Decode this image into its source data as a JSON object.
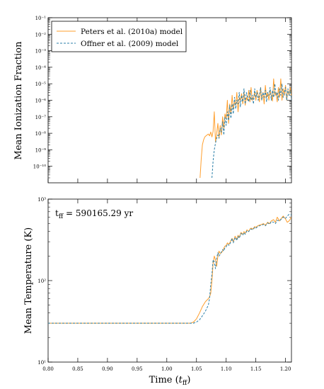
{
  "colors": {
    "peters": "#ff9f2e",
    "offner": "#2a7fa8",
    "axis": "#000000",
    "background": "#ffffff"
  },
  "chart_data": [
    {
      "type": "line",
      "ylabel": "Mean Ionization Fraction",
      "yscale": "log",
      "ylim": [
        1e-11,
        0.1
      ],
      "xlim": [
        0.8,
        1.21
      ],
      "y_ticks": [
        {
          "value": 1e-10,
          "label": "10⁻¹⁰"
        },
        {
          "value": 1e-09,
          "label": "10⁻⁹"
        },
        {
          "value": 1e-08,
          "label": "10⁻⁸"
        },
        {
          "value": 1e-07,
          "label": "10⁻⁷"
        },
        {
          "value": 1e-06,
          "label": "10⁻⁶"
        },
        {
          "value": 1e-05,
          "label": "10⁻⁵"
        },
        {
          "value": 0.0001,
          "label": "10⁻⁴"
        },
        {
          "value": 0.001,
          "label": "10⁻³"
        },
        {
          "value": 0.01,
          "label": "10⁻²"
        },
        {
          "value": 0.1,
          "label": "10⁻¹"
        }
      ],
      "legend": {
        "position": "top-left",
        "entries": [
          {
            "label": "Peters et al. (2010a) model",
            "series": 0
          },
          {
            "label": "Offner et al. (2009) model",
            "series": 1
          }
        ]
      },
      "series": [
        {
          "name": "Peters et al. (2010a) model",
          "style": "solid",
          "x": [
            1.056,
            1.058,
            1.06,
            1.062,
            1.064,
            1.066,
            1.068,
            1.07,
            1.072,
            1.074,
            1.076,
            1.078,
            1.08,
            1.082,
            1.084,
            1.086,
            1.088,
            1.09,
            1.092,
            1.094,
            1.096,
            1.098,
            1.1,
            1.102,
            1.104,
            1.106,
            1.108,
            1.11,
            1.112,
            1.114,
            1.116,
            1.118,
            1.12,
            1.122,
            1.124,
            1.126,
            1.128,
            1.13,
            1.132,
            1.134,
            1.136,
            1.138,
            1.14,
            1.142,
            1.144,
            1.146,
            1.148,
            1.15,
            1.152,
            1.154,
            1.156,
            1.158,
            1.16,
            1.162,
            1.164,
            1.166,
            1.168,
            1.17,
            1.172,
            1.174,
            1.176,
            1.178,
            1.18,
            1.182,
            1.184,
            1.186,
            1.188,
            1.19,
            1.192,
            1.194,
            1.196,
            1.198,
            1.2,
            1.202,
            1.204,
            1.206,
            1.208,
            1.21
          ],
          "y": [
            2e-11,
            3e-10,
            2e-09,
            4e-09,
            6e-09,
            7e-09,
            8e-09,
            9e-09,
            7e-09,
            1.2e-08,
            6e-09,
            1.3e-08,
            2e-07,
            3e-09,
            1e-08,
            4e-08,
            5e-09,
            3e-08,
            8e-09,
            1e-07,
            2e-08,
            1.5e-07,
            8e-08,
            1e-06,
            4e-08,
            6e-07,
            1.5e-07,
            2e-06,
            3e-07,
            8e-07,
            5e-07,
            3e-06,
            2e-07,
            1.5e-06,
            1e-06,
            2.5e-06,
            6e-07,
            3e-06,
            5e-07,
            1.5e-06,
            1e-06,
            4e-06,
            8e-07,
            6e-06,
            1e-06,
            1.5e-06,
            3e-06,
            1e-06,
            4e-06,
            2e-06,
            8e-07,
            6e-06,
            1e-06,
            3e-06,
            6e-07,
            8e-06,
            1.5e-06,
            3e-06,
            1e-06,
            4e-06,
            2e-06,
            9e-07,
            2e-05,
            2e-06,
            3e-06,
            8e-07,
            6e-06,
            1.5e-06,
            2e-05,
            1e-06,
            5e-06,
            2e-06,
            8e-06,
            1e-06,
            4e-06,
            2e-06,
            6e-06,
            1.5e-06
          ]
        },
        {
          "name": "Offner et al. (2009) model",
          "style": "dashed",
          "x": [
            1.076,
            1.078,
            1.08,
            1.082,
            1.084,
            1.086,
            1.088,
            1.09,
            1.092,
            1.094,
            1.096,
            1.098,
            1.1,
            1.102,
            1.104,
            1.106,
            1.108,
            1.11,
            1.112,
            1.114,
            1.116,
            1.118,
            1.12,
            1.122,
            1.124,
            1.126,
            1.128,
            1.13,
            1.132,
            1.134,
            1.136,
            1.138,
            1.14,
            1.142,
            1.144,
            1.146,
            1.148,
            1.15,
            1.152,
            1.154,
            1.156,
            1.158,
            1.16,
            1.162,
            1.164,
            1.166,
            1.168,
            1.17,
            1.172,
            1.174,
            1.176,
            1.178,
            1.18,
            1.182,
            1.184,
            1.186,
            1.188,
            1.19,
            1.192,
            1.194,
            1.196,
            1.198,
            1.2,
            1.202,
            1.204,
            1.206,
            1.208,
            1.21
          ],
          "y": [
            2e-11,
            2e-10,
            1e-09,
            2.5e-09,
            5e-09,
            8e-09,
            5e-09,
            2e-08,
            1.2e-08,
            5e-08,
            8e-09,
            1e-07,
            3e-08,
            2e-07,
            6e-08,
            5e-07,
            8e-08,
            6e-07,
            1.5e-07,
            1.5e-06,
            3e-07,
            1e-06,
            6e-07,
            3e-06,
            4e-07,
            2e-06,
            8e-07,
            5e-06,
            6e-07,
            3e-06,
            1.5e-06,
            8e-07,
            4e-06,
            1e-06,
            2e-06,
            6e-07,
            5e-06,
            1.5e-06,
            3e-06,
            1e-06,
            2e-06,
            6e-06,
            1e-06,
            3e-06,
            1.5e-06,
            4e-06,
            8e-07,
            3e-06,
            2e-06,
            6e-06,
            1e-06,
            4e-06,
            1.5e-06,
            1e-05,
            2e-06,
            3e-06,
            1e-06,
            5e-06,
            2e-06,
            1e-05,
            1.5e-06,
            3e-06,
            6e-06,
            1e-06,
            5e-06,
            2e-06,
            4e-06,
            1e-06
          ]
        }
      ]
    },
    {
      "type": "line",
      "xlabel": "Time (t_ff)",
      "xlabel_main": "Time (",
      "xlabel_var": "t",
      "xlabel_sub": "ff",
      "xlabel_close": ")",
      "ylabel": "Mean Temperature (K)",
      "yscale": "log",
      "ylim": [
        10,
        1000
      ],
      "xlim": [
        0.8,
        1.21
      ],
      "x_ticks": [
        0.8,
        0.85,
        0.9,
        0.95,
        1.0,
        1.05,
        1.1,
        1.15,
        1.2
      ],
      "x_tick_labels": [
        "0.80",
        "0.85",
        "0.90",
        "0.95",
        "1.00",
        "1.05",
        "1.10",
        "1.15",
        "1.20"
      ],
      "y_ticks": [
        {
          "value": 10,
          "label": "10¹"
        },
        {
          "value": 100,
          "label": "10²"
        },
        {
          "value": 1000,
          "label": "10³"
        }
      ],
      "annotation": {
        "var": "t",
        "sub": "ff",
        "text": " = 590165.29 yr"
      },
      "series": [
        {
          "name": "Peters et al. (2010a) model",
          "style": "solid",
          "x": [
            0.8,
            1.03,
            1.04,
            1.045,
            1.05,
            1.055,
            1.06,
            1.065,
            1.07,
            1.072,
            1.074,
            1.076,
            1.078,
            1.08,
            1.082,
            1.084,
            1.086,
            1.088,
            1.09,
            1.092,
            1.094,
            1.096,
            1.098,
            1.1,
            1.102,
            1.105,
            1.108,
            1.11,
            1.112,
            1.115,
            1.118,
            1.12,
            1.122,
            1.125,
            1.128,
            1.13,
            1.132,
            1.135,
            1.138,
            1.14,
            1.142,
            1.145,
            1.148,
            1.15,
            1.153,
            1.156,
            1.16,
            1.163,
            1.166,
            1.17,
            1.173,
            1.176,
            1.18,
            1.183,
            1.186,
            1.19,
            1.193,
            1.196,
            1.2,
            1.203,
            1.206,
            1.21
          ],
          "y": [
            30,
            30,
            30,
            31,
            34,
            40,
            48,
            55,
            60,
            63,
            70,
            100,
            160,
            200,
            180,
            150,
            200,
            230,
            215,
            220,
            230,
            250,
            265,
            270,
            290,
            280,
            310,
            330,
            300,
            350,
            320,
            360,
            340,
            390,
            370,
            400,
            380,
            420,
            400,
            430,
            440,
            430,
            460,
            450,
            470,
            480,
            490,
            500,
            480,
            520,
            500,
            540,
            560,
            520,
            600,
            540,
            580,
            620,
            570,
            520,
            540,
            600
          ]
        },
        {
          "name": "Offner et al. (2009) model",
          "style": "dashed",
          "x": [
            0.8,
            1.04,
            1.045,
            1.05,
            1.055,
            1.06,
            1.065,
            1.07,
            1.072,
            1.074,
            1.076,
            1.078,
            1.08,
            1.082,
            1.084,
            1.086,
            1.088,
            1.09,
            1.092,
            1.094,
            1.096,
            1.098,
            1.1,
            1.102,
            1.105,
            1.108,
            1.11,
            1.112,
            1.115,
            1.118,
            1.12,
            1.122,
            1.125,
            1.128,
            1.13,
            1.132,
            1.135,
            1.138,
            1.14,
            1.142,
            1.145,
            1.148,
            1.15,
            1.153,
            1.156,
            1.16,
            1.163,
            1.166,
            1.17,
            1.173,
            1.176,
            1.18,
            1.183,
            1.186,
            1.19,
            1.193,
            1.196,
            1.2,
            1.203,
            1.206,
            1.21
          ],
          "y": [
            30,
            30,
            30,
            31,
            33,
            37,
            42,
            50,
            60,
            90,
            120,
            180,
            170,
            140,
            190,
            220,
            200,
            210,
            225,
            240,
            230,
            255,
            260,
            280,
            270,
            300,
            330,
            290,
            340,
            310,
            350,
            330,
            380,
            360,
            390,
            370,
            410,
            400,
            420,
            430,
            420,
            450,
            440,
            460,
            470,
            480,
            490,
            470,
            510,
            490,
            530,
            520,
            500,
            550,
            540,
            570,
            600,
            580,
            620,
            650,
            640
          ]
        }
      ]
    }
  ]
}
